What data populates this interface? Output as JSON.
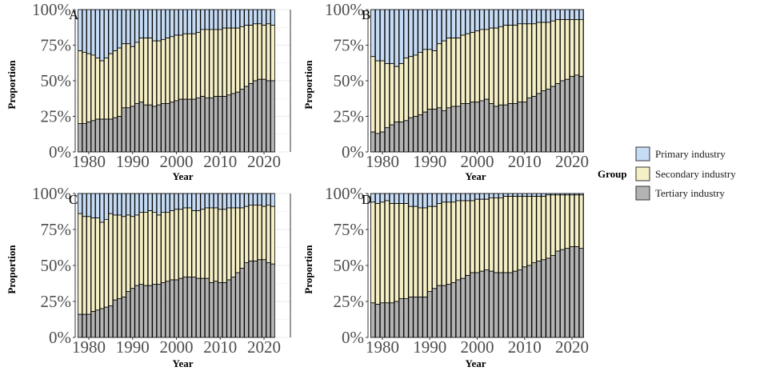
{
  "colors": {
    "primary": "#c6dcf5",
    "secondary": "#f5efc6",
    "tertiary": "#b3b3b3",
    "bar_outline": "#000000",
    "grid": "#ebebeb"
  },
  "legend": {
    "title": "Group",
    "items": [
      {
        "label": "Primary industry",
        "key": "primary"
      },
      {
        "label": "Secondary industry",
        "key": "secondary"
      },
      {
        "label": "Tertiary industry",
        "key": "tertiary"
      }
    ],
    "placement": "right"
  },
  "chart_data": [
    {
      "type": "bar",
      "stacked": true,
      "panel": "A",
      "xlabel": "Year",
      "ylabel": "Proportion",
      "ylim": [
        0,
        1
      ],
      "yticks": [
        "0%",
        "25%",
        "50%",
        "75%",
        "100%"
      ],
      "xticks": [
        "1980",
        "1990",
        "2000",
        "2010",
        "2020"
      ],
      "x": [
        1978,
        1979,
        1980,
        1981,
        1982,
        1983,
        1984,
        1985,
        1986,
        1987,
        1988,
        1989,
        1990,
        1991,
        1992,
        1993,
        1994,
        1995,
        1996,
        1997,
        1998,
        1999,
        2000,
        2001,
        2002,
        2003,
        2004,
        2005,
        2006,
        2007,
        2008,
        2009,
        2010,
        2011,
        2012,
        2013,
        2014,
        2015,
        2016,
        2017,
        2018,
        2019,
        2020,
        2021,
        2022
      ],
      "series": [
        {
          "name": "Tertiary industry",
          "values": [
            0.2,
            0.2,
            0.21,
            0.22,
            0.23,
            0.23,
            0.23,
            0.23,
            0.24,
            0.25,
            0.31,
            0.31,
            0.32,
            0.34,
            0.35,
            0.33,
            0.33,
            0.32,
            0.33,
            0.34,
            0.34,
            0.35,
            0.36,
            0.37,
            0.37,
            0.37,
            0.37,
            0.38,
            0.39,
            0.38,
            0.38,
            0.39,
            0.39,
            0.39,
            0.4,
            0.41,
            0.42,
            0.44,
            0.46,
            0.48,
            0.5,
            0.51,
            0.51,
            0.5,
            0.5
          ]
        },
        {
          "name": "Secondary industry",
          "values": [
            0.51,
            0.5,
            0.48,
            0.46,
            0.43,
            0.41,
            0.43,
            0.46,
            0.47,
            0.48,
            0.45,
            0.45,
            0.42,
            0.43,
            0.45,
            0.47,
            0.47,
            0.46,
            0.45,
            0.45,
            0.46,
            0.46,
            0.46,
            0.45,
            0.46,
            0.46,
            0.46,
            0.46,
            0.47,
            0.48,
            0.48,
            0.47,
            0.47,
            0.48,
            0.47,
            0.46,
            0.45,
            0.44,
            0.43,
            0.41,
            0.4,
            0.39,
            0.38,
            0.4,
            0.39
          ]
        },
        {
          "name": "Primary industry",
          "values": [
            0.29,
            0.3,
            0.31,
            0.32,
            0.34,
            0.36,
            0.34,
            0.31,
            0.29,
            0.27,
            0.24,
            0.24,
            0.26,
            0.23,
            0.2,
            0.2,
            0.2,
            0.22,
            0.22,
            0.21,
            0.2,
            0.19,
            0.18,
            0.18,
            0.17,
            0.17,
            0.17,
            0.16,
            0.14,
            0.14,
            0.14,
            0.14,
            0.14,
            0.13,
            0.13,
            0.13,
            0.13,
            0.12,
            0.11,
            0.11,
            0.1,
            0.1,
            0.11,
            0.1,
            0.11
          ]
        }
      ]
    },
    {
      "type": "bar",
      "stacked": true,
      "panel": "B",
      "xlabel": "Year",
      "ylabel": "Proportion",
      "ylim": [
        0,
        1
      ],
      "yticks": [
        "0%",
        "25%",
        "50%",
        "75%",
        "100%"
      ],
      "xticks": [
        "1980",
        "1990",
        "2000",
        "2010",
        "2020"
      ],
      "x": [
        1978,
        1979,
        1980,
        1981,
        1982,
        1983,
        1984,
        1985,
        1986,
        1987,
        1988,
        1989,
        1990,
        1991,
        1992,
        1993,
        1994,
        1995,
        1996,
        1997,
        1998,
        1999,
        2000,
        2001,
        2002,
        2003,
        2004,
        2005,
        2006,
        2007,
        2008,
        2009,
        2010,
        2011,
        2012,
        2013,
        2014,
        2015,
        2016,
        2017,
        2018,
        2019,
        2020,
        2021,
        2022
      ],
      "series": [
        {
          "name": "Tertiary industry",
          "values": [
            0.14,
            0.13,
            0.14,
            0.17,
            0.19,
            0.21,
            0.21,
            0.22,
            0.24,
            0.25,
            0.26,
            0.28,
            0.3,
            0.3,
            0.31,
            0.29,
            0.31,
            0.32,
            0.32,
            0.34,
            0.34,
            0.35,
            0.35,
            0.36,
            0.37,
            0.34,
            0.32,
            0.33,
            0.33,
            0.34,
            0.34,
            0.35,
            0.35,
            0.38,
            0.39,
            0.41,
            0.43,
            0.44,
            0.46,
            0.48,
            0.5,
            0.51,
            0.53,
            0.54,
            0.53
          ]
        },
        {
          "name": "Secondary industry",
          "values": [
            0.53,
            0.51,
            0.5,
            0.45,
            0.43,
            0.39,
            0.41,
            0.44,
            0.43,
            0.43,
            0.44,
            0.44,
            0.42,
            0.41,
            0.45,
            0.49,
            0.49,
            0.48,
            0.48,
            0.48,
            0.49,
            0.49,
            0.5,
            0.5,
            0.49,
            0.53,
            0.55,
            0.55,
            0.56,
            0.55,
            0.55,
            0.55,
            0.55,
            0.52,
            0.51,
            0.5,
            0.48,
            0.47,
            0.46,
            0.45,
            0.43,
            0.42,
            0.4,
            0.39,
            0.4
          ]
        },
        {
          "name": "Primary industry",
          "values": [
            0.33,
            0.36,
            0.36,
            0.38,
            0.38,
            0.4,
            0.38,
            0.34,
            0.33,
            0.32,
            0.3,
            0.28,
            0.28,
            0.29,
            0.24,
            0.22,
            0.2,
            0.2,
            0.2,
            0.18,
            0.17,
            0.16,
            0.15,
            0.14,
            0.14,
            0.13,
            0.13,
            0.12,
            0.11,
            0.11,
            0.11,
            0.1,
            0.1,
            0.1,
            0.1,
            0.09,
            0.09,
            0.09,
            0.08,
            0.07,
            0.07,
            0.07,
            0.07,
            0.07,
            0.07
          ]
        }
      ]
    },
    {
      "type": "bar",
      "stacked": true,
      "panel": "C",
      "xlabel": "Year",
      "ylabel": "Proportion",
      "ylim": [
        0,
        1
      ],
      "yticks": [
        "0%",
        "25%",
        "50%",
        "75%",
        "100%"
      ],
      "xticks": [
        "1980",
        "1990",
        "2000",
        "2010",
        "2020"
      ],
      "x": [
        1978,
        1979,
        1980,
        1981,
        1982,
        1983,
        1984,
        1985,
        1986,
        1987,
        1988,
        1989,
        1990,
        1991,
        1992,
        1993,
        1994,
        1995,
        1996,
        1997,
        1998,
        1999,
        2000,
        2001,
        2002,
        2003,
        2004,
        2005,
        2006,
        2007,
        2008,
        2009,
        2010,
        2011,
        2012,
        2013,
        2014,
        2015,
        2016,
        2017,
        2018,
        2019,
        2020,
        2021,
        2022
      ],
      "series": [
        {
          "name": "Tertiary industry",
          "values": [
            0.16,
            0.16,
            0.16,
            0.18,
            0.19,
            0.2,
            0.21,
            0.22,
            0.26,
            0.27,
            0.28,
            0.32,
            0.34,
            0.36,
            0.37,
            0.36,
            0.36,
            0.37,
            0.37,
            0.38,
            0.39,
            0.4,
            0.4,
            0.41,
            0.42,
            0.42,
            0.42,
            0.41,
            0.41,
            0.41,
            0.38,
            0.39,
            0.38,
            0.38,
            0.4,
            0.42,
            0.45,
            0.48,
            0.52,
            0.53,
            0.53,
            0.54,
            0.54,
            0.52,
            0.51
          ]
        },
        {
          "name": "Secondary industry",
          "values": [
            0.7,
            0.68,
            0.68,
            0.65,
            0.64,
            0.6,
            0.61,
            0.64,
            0.59,
            0.58,
            0.56,
            0.53,
            0.5,
            0.49,
            0.5,
            0.51,
            0.52,
            0.5,
            0.48,
            0.49,
            0.48,
            0.48,
            0.49,
            0.48,
            0.48,
            0.48,
            0.46,
            0.47,
            0.48,
            0.49,
            0.52,
            0.51,
            0.51,
            0.51,
            0.5,
            0.48,
            0.45,
            0.42,
            0.39,
            0.39,
            0.39,
            0.38,
            0.37,
            0.4,
            0.4
          ]
        },
        {
          "name": "Primary industry",
          "values": [
            0.14,
            0.16,
            0.16,
            0.17,
            0.17,
            0.2,
            0.18,
            0.14,
            0.15,
            0.15,
            0.16,
            0.15,
            0.16,
            0.15,
            0.13,
            0.13,
            0.12,
            0.13,
            0.15,
            0.13,
            0.13,
            0.12,
            0.11,
            0.11,
            0.1,
            0.1,
            0.12,
            0.12,
            0.11,
            0.1,
            0.1,
            0.1,
            0.11,
            0.11,
            0.1,
            0.1,
            0.1,
            0.1,
            0.09,
            0.08,
            0.08,
            0.08,
            0.09,
            0.08,
            0.09
          ]
        }
      ]
    },
    {
      "type": "bar",
      "stacked": true,
      "panel": "D",
      "xlabel": "Year",
      "ylabel": "Proportion",
      "ylim": [
        0,
        1
      ],
      "yticks": [
        "0%",
        "25%",
        "50%",
        "75%",
        "100%"
      ],
      "xticks": [
        "1980",
        "1990",
        "2000",
        "2010",
        "2020"
      ],
      "x": [
        1978,
        1979,
        1980,
        1981,
        1982,
        1983,
        1984,
        1985,
        1986,
        1987,
        1988,
        1989,
        1990,
        1991,
        1992,
        1993,
        1994,
        1995,
        1996,
        1997,
        1998,
        1999,
        2000,
        2001,
        2002,
        2003,
        2004,
        2005,
        2006,
        2007,
        2008,
        2009,
        2010,
        2011,
        2012,
        2013,
        2014,
        2015,
        2016,
        2017,
        2018,
        2019,
        2020,
        2021,
        2022
      ],
      "series": [
        {
          "name": "Tertiary industry",
          "values": [
            0.24,
            0.23,
            0.24,
            0.24,
            0.24,
            0.25,
            0.27,
            0.27,
            0.28,
            0.28,
            0.28,
            0.28,
            0.32,
            0.34,
            0.36,
            0.36,
            0.37,
            0.38,
            0.4,
            0.41,
            0.43,
            0.45,
            0.45,
            0.46,
            0.47,
            0.46,
            0.45,
            0.45,
            0.45,
            0.45,
            0.46,
            0.47,
            0.49,
            0.5,
            0.52,
            0.53,
            0.54,
            0.55,
            0.57,
            0.6,
            0.61,
            0.62,
            0.63,
            0.63,
            0.62
          ]
        },
        {
          "name": "Secondary industry",
          "values": [
            0.7,
            0.7,
            0.7,
            0.71,
            0.69,
            0.68,
            0.66,
            0.66,
            0.63,
            0.63,
            0.62,
            0.62,
            0.59,
            0.57,
            0.57,
            0.58,
            0.57,
            0.56,
            0.55,
            0.54,
            0.52,
            0.5,
            0.51,
            0.5,
            0.49,
            0.51,
            0.52,
            0.52,
            0.53,
            0.53,
            0.52,
            0.51,
            0.49,
            0.48,
            0.46,
            0.45,
            0.44,
            0.44,
            0.42,
            0.39,
            0.38,
            0.37,
            0.36,
            0.36,
            0.37
          ]
        },
        {
          "name": "Primary industry",
          "values": [
            0.06,
            0.07,
            0.06,
            0.05,
            0.07,
            0.07,
            0.07,
            0.07,
            0.09,
            0.09,
            0.1,
            0.1,
            0.09,
            0.09,
            0.07,
            0.06,
            0.06,
            0.06,
            0.05,
            0.05,
            0.05,
            0.05,
            0.04,
            0.04,
            0.04,
            0.03,
            0.03,
            0.03,
            0.02,
            0.02,
            0.02,
            0.02,
            0.02,
            0.02,
            0.02,
            0.02,
            0.02,
            0.01,
            0.01,
            0.01,
            0.01,
            0.01,
            0.01,
            0.01,
            0.01
          ]
        }
      ]
    }
  ]
}
